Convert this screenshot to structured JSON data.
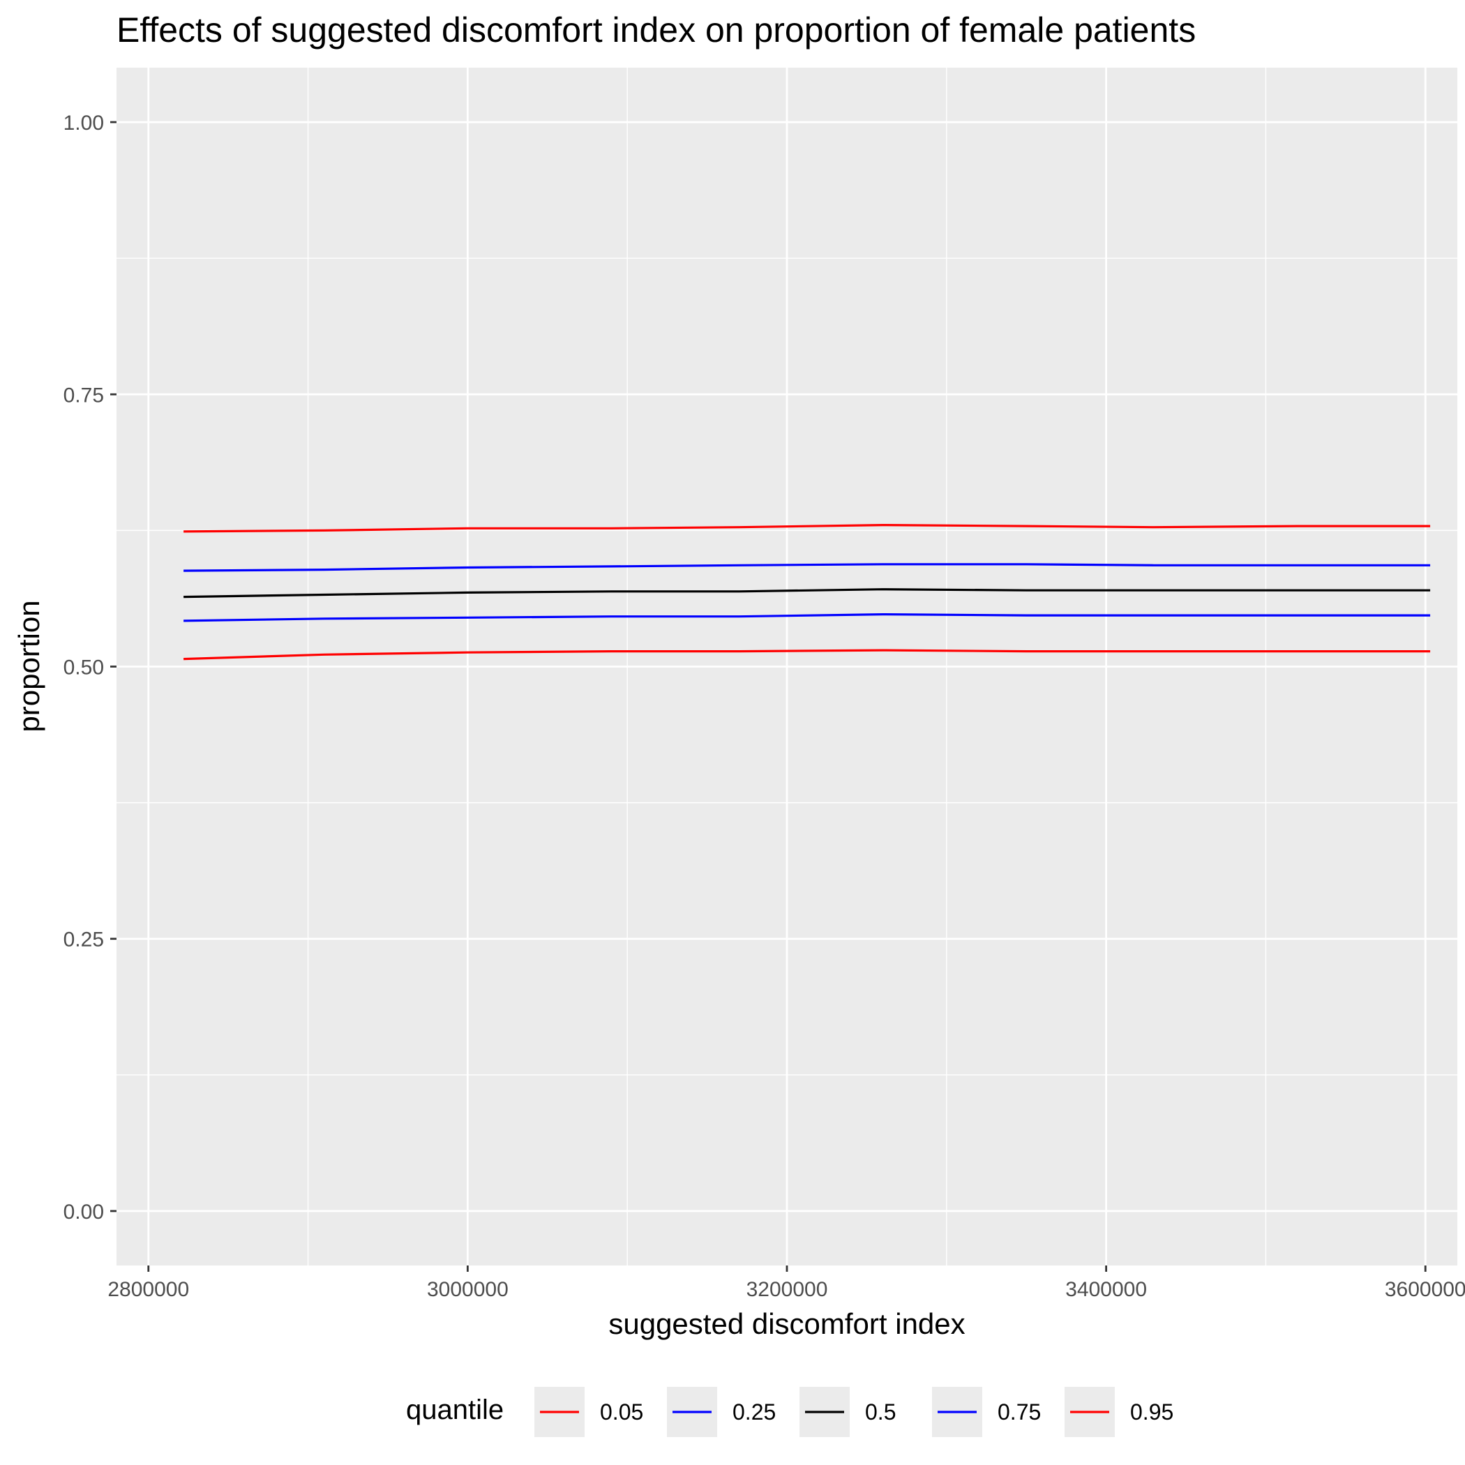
{
  "chart_data": {
    "type": "line",
    "title": "Effects of suggested discomfort index on proportion of female patients",
    "xlabel": "suggested discomfort index",
    "ylabel": "proportion",
    "xlim": [
      2780000,
      3620000
    ],
    "ylim": [
      -0.05,
      1.05
    ],
    "x_ticks": [
      2800000,
      3000000,
      3200000,
      3400000,
      3600000
    ],
    "x_tick_labels": [
      "2800000",
      "3000000",
      "3200000",
      "3400000",
      "3600000"
    ],
    "x_minor_ticks": [
      2900000,
      3100000,
      3300000,
      3500000
    ],
    "y_ticks": [
      0,
      0.25,
      0.5,
      0.75,
      1.0
    ],
    "y_tick_labels": [
      "0.00",
      "0.25",
      "0.50",
      "0.75",
      "1.00"
    ],
    "y_minor_ticks": [
      0.125,
      0.375,
      0.625,
      0.875
    ],
    "grid": true,
    "legend_position": "bottom",
    "legend_title": "quantile",
    "x": [
      2822000,
      2910000,
      3000000,
      3090000,
      3170000,
      3260000,
      3350000,
      3430000,
      3520000,
      3603000
    ],
    "series": [
      {
        "name": "0.05",
        "color": "#ff0000",
        "values": [
          0.507,
          0.511,
          0.513,
          0.514,
          0.514,
          0.515,
          0.514,
          0.514,
          0.514,
          0.514
        ]
      },
      {
        "name": "0.25",
        "color": "#0000ff",
        "values": [
          0.542,
          0.544,
          0.545,
          0.546,
          0.546,
          0.548,
          0.547,
          0.547,
          0.547,
          0.547
        ]
      },
      {
        "name": "0.5",
        "color": "#000000",
        "values": [
          0.564,
          0.566,
          0.568,
          0.569,
          0.569,
          0.571,
          0.57,
          0.57,
          0.57,
          0.57
        ]
      },
      {
        "name": "0.75",
        "color": "#0000ff",
        "values": [
          0.588,
          0.589,
          0.591,
          0.592,
          0.593,
          0.594,
          0.594,
          0.593,
          0.593,
          0.593
        ]
      },
      {
        "name": "0.95",
        "color": "#ff0000",
        "values": [
          0.624,
          0.625,
          0.627,
          0.627,
          0.628,
          0.63,
          0.629,
          0.628,
          0.629,
          0.629
        ]
      }
    ]
  },
  "colors": {
    "panel_background": "#ebebeb",
    "grid_line": "#ffffff",
    "tick_label": "#4d4d4d",
    "axis_tick": "#333333"
  }
}
